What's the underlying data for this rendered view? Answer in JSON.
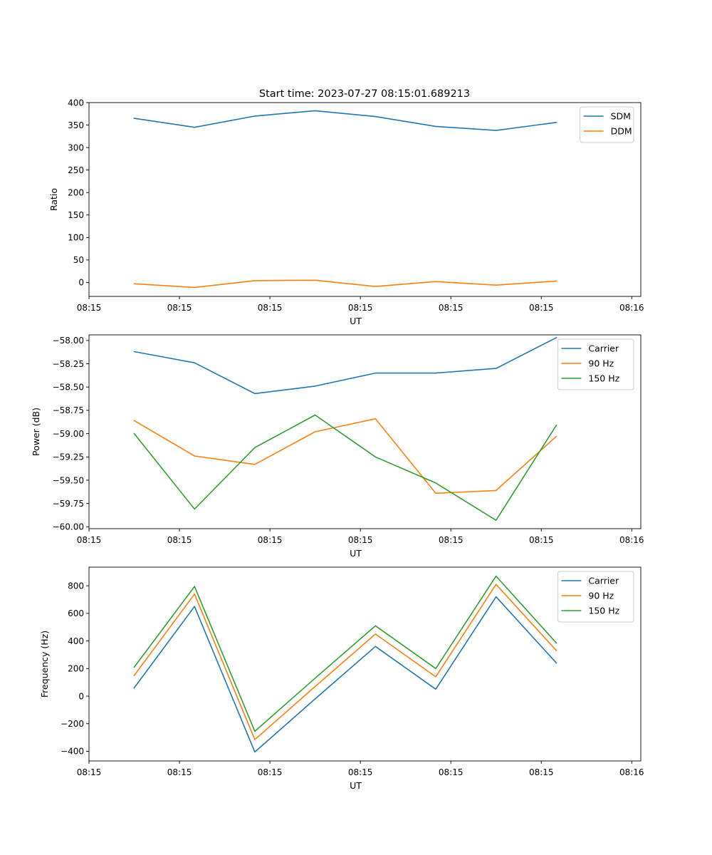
{
  "colors": {
    "c0": "#1f77b4",
    "c1": "#ff7f0e",
    "c2": "#2ca02c"
  },
  "chart_data": [
    {
      "type": "line",
      "title": "Start time: 2023-07-27 08:15:01.689213",
      "xlabel": "UT",
      "ylabel": "Ratio",
      "x": [
        0,
        1,
        2,
        3,
        4,
        5,
        6,
        7
      ],
      "xlim": [
        -0.75,
        8.4
      ],
      "xticks": [
        -0.75,
        0.75,
        2.25,
        3.75,
        5.25,
        6.75,
        8.25
      ],
      "xtick_labels": [
        "08:15",
        "08:15",
        "08:15",
        "08:15",
        "08:15",
        "08:15",
        "08:16"
      ],
      "ylim": [
        -31,
        400
      ],
      "yticks": [
        0,
        50,
        100,
        150,
        200,
        250,
        300,
        350,
        400
      ],
      "ytick_labels": [
        "0",
        "50",
        "100",
        "150",
        "200",
        "250",
        "300",
        "350",
        "400"
      ],
      "legend_position": "top-right",
      "series": [
        {
          "name": "SDM",
          "color_key": "c0",
          "values": [
            365,
            345,
            370,
            382,
            369,
            347,
            338,
            356
          ]
        },
        {
          "name": "DDM",
          "color_key": "c1",
          "values": [
            -3,
            -11,
            4,
            5,
            -9,
            2,
            -6,
            3
          ]
        }
      ]
    },
    {
      "type": "line",
      "title": "",
      "xlabel": "UT",
      "ylabel": "Power (dB)",
      "x": [
        0,
        1,
        2,
        3,
        4,
        5,
        6,
        7
      ],
      "xlim": [
        -0.75,
        8.4
      ],
      "xticks": [
        -0.75,
        0.75,
        2.25,
        3.75,
        5.25,
        6.75,
        8.25
      ],
      "xtick_labels": [
        "08:15",
        "08:15",
        "08:15",
        "08:15",
        "08:15",
        "08:15",
        "08:16"
      ],
      "ylim": [
        -60.02,
        -57.94
      ],
      "yticks": [
        -60.0,
        -59.75,
        -59.5,
        -59.25,
        -59.0,
        -58.75,
        -58.5,
        -58.25,
        -58.0
      ],
      "ytick_labels": [
        "−60.00",
        "−59.75",
        "−59.50",
        "−59.25",
        "−59.00",
        "−58.75",
        "−58.50",
        "−58.25",
        "−58.00"
      ],
      "legend_position": "top-right",
      "series": [
        {
          "name": "Carrier",
          "color_key": "c0",
          "values": [
            -58.12,
            -58.24,
            -58.57,
            -58.49,
            -58.35,
            -58.35,
            -58.3,
            -57.97
          ]
        },
        {
          "name": "90 Hz",
          "color_key": "c1",
          "values": [
            -58.86,
            -59.24,
            -59.33,
            -58.98,
            -58.84,
            -59.64,
            -59.61,
            -59.03
          ]
        },
        {
          "name": "150 Hz",
          "color_key": "c2",
          "values": [
            -59.0,
            -59.81,
            -59.15,
            -58.8,
            -59.25,
            -59.53,
            -59.93,
            -58.91
          ]
        }
      ]
    },
    {
      "type": "line",
      "title": "",
      "xlabel": "UT",
      "ylabel": "Frequency (Hz)",
      "x": [
        0,
        1,
        2,
        3,
        4,
        5,
        6,
        7
      ],
      "xlim": [
        -0.75,
        8.4
      ],
      "xticks": [
        -0.75,
        0.75,
        2.25,
        3.75,
        5.25,
        6.75,
        8.25
      ],
      "xtick_labels": [
        "08:15",
        "08:15",
        "08:15",
        "08:15",
        "08:15",
        "08:15",
        "08:16"
      ],
      "ylim": [
        -470,
        935
      ],
      "yticks": [
        -400,
        -200,
        0,
        200,
        400,
        600,
        800
      ],
      "ytick_labels": [
        "−400",
        "−200",
        "0",
        "200",
        "400",
        "600",
        "800"
      ],
      "legend_position": "top-right",
      "series": [
        {
          "name": "Carrier",
          "color_key": "c0",
          "values": [
            60,
            650,
            -405,
            -20,
            360,
            50,
            720,
            240
          ]
        },
        {
          "name": "90 Hz",
          "color_key": "c1",
          "values": [
            150,
            740,
            -315,
            70,
            450,
            140,
            810,
            330
          ]
        },
        {
          "name": "150 Hz",
          "color_key": "c2",
          "values": [
            210,
            795,
            -255,
            130,
            510,
            200,
            870,
            385
          ]
        }
      ]
    }
  ]
}
